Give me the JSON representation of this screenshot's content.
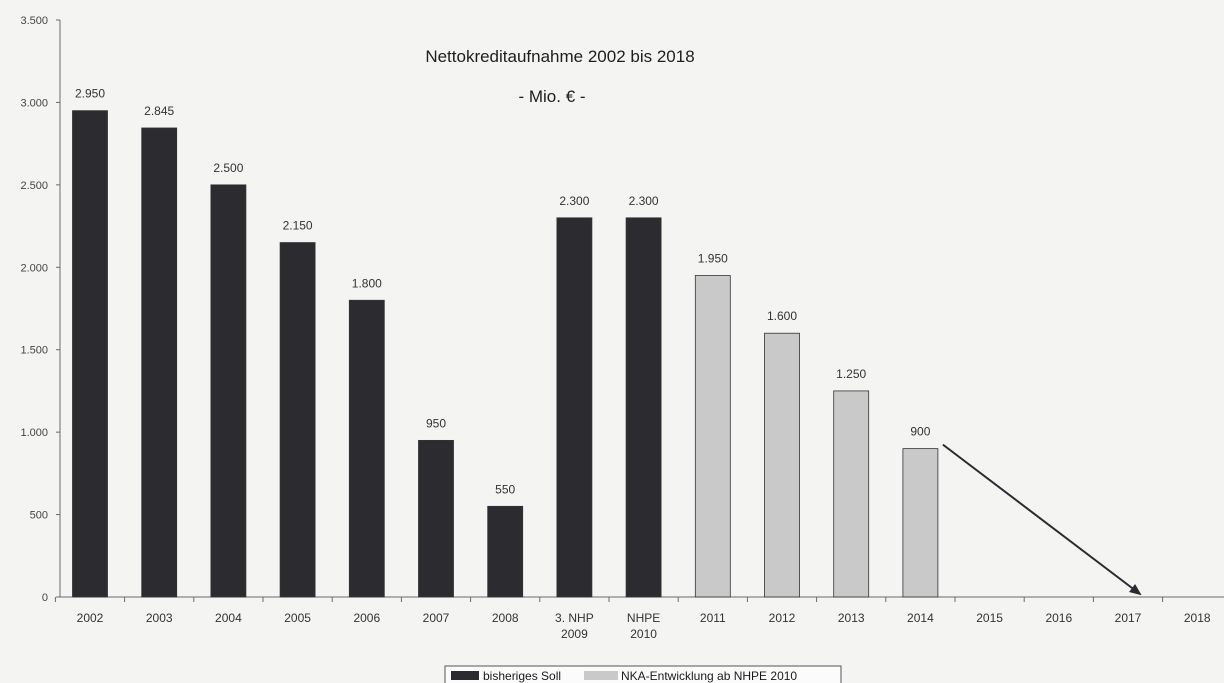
{
  "chart_data": {
    "type": "bar",
    "title": "Nettokreditaufnahme 2002 bis 2018",
    "subtitle": "- Mio. € -",
    "categories": [
      [
        "2002"
      ],
      [
        "2003"
      ],
      [
        "2004"
      ],
      [
        "2005"
      ],
      [
        "2006"
      ],
      [
        "2007"
      ],
      [
        "2008"
      ],
      [
        "3. NHP",
        "2009"
      ],
      [
        "NHPE",
        "2010"
      ],
      [
        "2011"
      ],
      [
        "2012"
      ],
      [
        "2013"
      ],
      [
        "2014"
      ],
      [
        "2015"
      ],
      [
        "2016"
      ],
      [
        "2017"
      ],
      [
        "2018"
      ]
    ],
    "series": [
      {
        "name": "bisheriges Soll",
        "color": "#2b2b30",
        "values": [
          2950,
          2845,
          2500,
          2150,
          1800,
          950,
          550,
          2300,
          2300,
          null,
          null,
          null,
          null,
          null,
          null,
          null,
          null
        ],
        "labels": [
          "2.950",
          "2.845",
          "2.500",
          "2.150",
          "1.800",
          "950",
          "550",
          "2.300",
          "2.300",
          "",
          "",
          "",
          "",
          "",
          "",
          "",
          ""
        ]
      },
      {
        "name": "NKA-Entwicklung ab NHPE 2010",
        "color": "#c9c9c9",
        "values": [
          null,
          null,
          null,
          null,
          null,
          null,
          null,
          null,
          null,
          1950,
          1600,
          1250,
          900,
          null,
          null,
          null,
          null
        ],
        "labels": [
          "",
          "",
          "",
          "",
          "",
          "",
          "",
          "",
          "",
          "1.950",
          "1.600",
          "1.250",
          "900",
          "",
          "",
          "",
          ""
        ]
      }
    ],
    "ylim": [
      0,
      3500
    ],
    "yticks": [
      0,
      500,
      1000,
      1500,
      2000,
      2500,
      3000,
      3500
    ],
    "ytick_labels": [
      "0",
      "500",
      "1.000",
      "1.500",
      "2.000",
      "2.500",
      "3.000",
      "3.500"
    ],
    "annotations": [
      {
        "type": "arrow",
        "from": {
          "category": "2014",
          "value": 900
        },
        "to": {
          "category": "2017",
          "value": 0
        }
      }
    ],
    "grid": false,
    "legend_position": "bottom-center"
  }
}
